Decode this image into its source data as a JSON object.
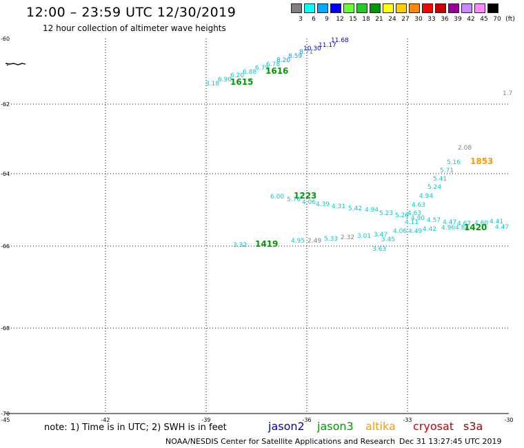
{
  "header": {
    "title": "12:00 – 23:59 UTC 12/30/2019",
    "subtitle": "12 hour collection of altimeter wave heights"
  },
  "legend": {
    "colors": [
      "#808080",
      "#00ffff",
      "#00aaff",
      "#0000ff",
      "#66ff33",
      "#22cc22",
      "#009900",
      "#ffff00",
      "#ffcc00",
      "#ff8800",
      "#ff0000",
      "#cc0000",
      "#990099",
      "#cc88ff",
      "#ff88ff",
      "#000000"
    ],
    "values": [
      "3",
      "6",
      "9",
      "12",
      "15",
      "18",
      "21",
      "24",
      "27",
      "30",
      "33",
      "36",
      "39",
      "42",
      "45",
      "70"
    ],
    "unit": "(ft)"
  },
  "axes": {
    "lat_labels": [
      "-60",
      "-62",
      "-64",
      "-66",
      "-68",
      "-70"
    ],
    "lon_labels": [
      "-45",
      "-42",
      "-39",
      "-36",
      "-33",
      "-30"
    ]
  },
  "satellite_colors": {
    "jason2": "#0000cc",
    "jason3": "#009900",
    "altika": "#ff9900",
    "cryosat": "#cc0000",
    "s3a": "#990000"
  },
  "map_labels": [
    {
      "id": "t1-1",
      "text": "3.18",
      "color": "#00cccc"
    },
    {
      "id": "t1-2",
      "text": "6.90",
      "color": "#00cccc"
    },
    {
      "id": "t1-3",
      "text": "6.20",
      "color": "#00cccc"
    },
    {
      "id": "t1-4",
      "text": "6.88",
      "color": "#00cccc"
    },
    {
      "id": "t1-5",
      "text": "6.79",
      "color": "#00cccc"
    },
    {
      "id": "t1-6",
      "text": "6.78",
      "color": "#00cccc"
    },
    {
      "id": "t1-7",
      "text": "8.20",
      "color": "#0099ff"
    },
    {
      "id": "t1-8",
      "text": "8.59",
      "color": "#0099ff"
    },
    {
      "id": "t1-9",
      "text": "8.71",
      "color": "#0099ff"
    },
    {
      "id": "t1-10",
      "text": "10.30",
      "color": "#0000cc"
    },
    {
      "id": "t1-11",
      "text": "11.17",
      "color": "#0000cc"
    },
    {
      "id": "t1-12",
      "text": "11.68",
      "color": "#0000cc"
    },
    {
      "id": "time-1615",
      "text": "1615",
      "color": "#009900",
      "bold": true
    },
    {
      "id": "time-1616",
      "text": "1616",
      "color": "#009900",
      "bold": true
    },
    {
      "id": "edge-1",
      "text": "1.7",
      "color": "#808080"
    },
    {
      "id": "t2-1",
      "text": "2.08",
      "color": "#808080"
    },
    {
      "id": "t2-2",
      "text": "5.16",
      "color": "#00cccc"
    },
    {
      "id": "time-1853",
      "text": "1853",
      "color": "#ff9900",
      "bold": true
    },
    {
      "id": "t2-3",
      "text": "5.71",
      "color": "#00cccc"
    },
    {
      "id": "t2-4",
      "text": "5.41",
      "color": "#00cccc"
    },
    {
      "id": "t2-5",
      "text": "5.24",
      "color": "#00cccc"
    },
    {
      "id": "t2-6",
      "text": "4.94",
      "color": "#00cccc"
    },
    {
      "id": "t2-7",
      "text": "4.63",
      "color": "#00cccc"
    },
    {
      "id": "t2-8",
      "text": "4.63",
      "color": "#00cccc"
    },
    {
      "id": "t3-1",
      "text": "6.00",
      "color": "#00cccc"
    },
    {
      "id": "time-1223",
      "text": "1223",
      "color": "#009900",
      "bold": true
    },
    {
      "id": "t3-2",
      "text": "5.76",
      "color": "#00cccc"
    },
    {
      "id": "t3-3",
      "text": "4.06",
      "color": "#00cccc"
    },
    {
      "id": "t3-4",
      "text": "4.39",
      "color": "#00cccc"
    },
    {
      "id": "t3-5",
      "text": "4.31",
      "color": "#00cccc"
    },
    {
      "id": "t3-6",
      "text": "5.42",
      "color": "#00cccc"
    },
    {
      "id": "t3-7",
      "text": "4.94",
      "color": "#00cccc"
    },
    {
      "id": "t3-8",
      "text": "5.23",
      "color": "#00cccc"
    },
    {
      "id": "t3-9",
      "text": "5.26",
      "color": "#00cccc"
    },
    {
      "id": "t3-10",
      "text": "4.90",
      "color": "#00cccc"
    },
    {
      "id": "t3-11",
      "text": "4.57",
      "color": "#00cccc"
    },
    {
      "id": "t3-12",
      "text": "4.47",
      "color": "#00cccc"
    },
    {
      "id": "t3-13",
      "text": "4.67",
      "color": "#00cccc"
    },
    {
      "id": "t3-14",
      "text": "4.60",
      "color": "#00cccc"
    },
    {
      "id": "t3-15",
      "text": "4.41",
      "color": "#00cccc"
    },
    {
      "id": "t3-16",
      "text": "4.47",
      "color": "#00cccc"
    },
    {
      "id": "t3-17",
      "text": "4.11",
      "color": "#00cccc"
    },
    {
      "id": "t3-18",
      "text": "4.06",
      "color": "#00cccc"
    },
    {
      "id": "t3-19",
      "text": "4.49",
      "color": "#00cccc"
    },
    {
      "id": "t3-20",
      "text": "4.42",
      "color": "#00cccc"
    },
    {
      "id": "t3-21",
      "text": "4.96",
      "color": "#00cccc"
    },
    {
      "id": "t3-22",
      "text": "4.84",
      "color": "#00cccc"
    },
    {
      "id": "time-1420",
      "text": "1420",
      "color": "#009900",
      "bold": true
    },
    {
      "id": "t4-1",
      "text": "3.32",
      "color": "#00cccc"
    },
    {
      "id": "time-1419",
      "text": "1419",
      "color": "#009900",
      "bold": true
    },
    {
      "id": "t4-2",
      "text": "4.95",
      "color": "#00cccc"
    },
    {
      "id": "t4-3",
      "text": "2.49",
      "color": "#808080"
    },
    {
      "id": "t4-4",
      "text": "5.33",
      "color": "#00cccc"
    },
    {
      "id": "t4-5",
      "text": "2.32",
      "color": "#808080"
    },
    {
      "id": "t4-6",
      "text": "3.01",
      "color": "#00cccc"
    },
    {
      "id": "t4-7",
      "text": "3.47",
      "color": "#00cccc"
    },
    {
      "id": "t4-8",
      "text": "3.45",
      "color": "#00cccc"
    },
    {
      "id": "t4-9",
      "text": "3.63",
      "color": "#00cccc"
    }
  ],
  "footer": {
    "note": "note: 1) Time is in UTC; 2) SWH is in feet",
    "sat_jason2": "jason2",
    "sat_jason3": "jason3",
    "sat_altika": "altika",
    "sat_cryosat": "cryosat",
    "sat_s3a": "s3a",
    "credit": "NOAA/NESDIS Center for Satellite Applications and Research",
    "timestamp": "Dec 31 13:27:45 UTC 2019"
  }
}
